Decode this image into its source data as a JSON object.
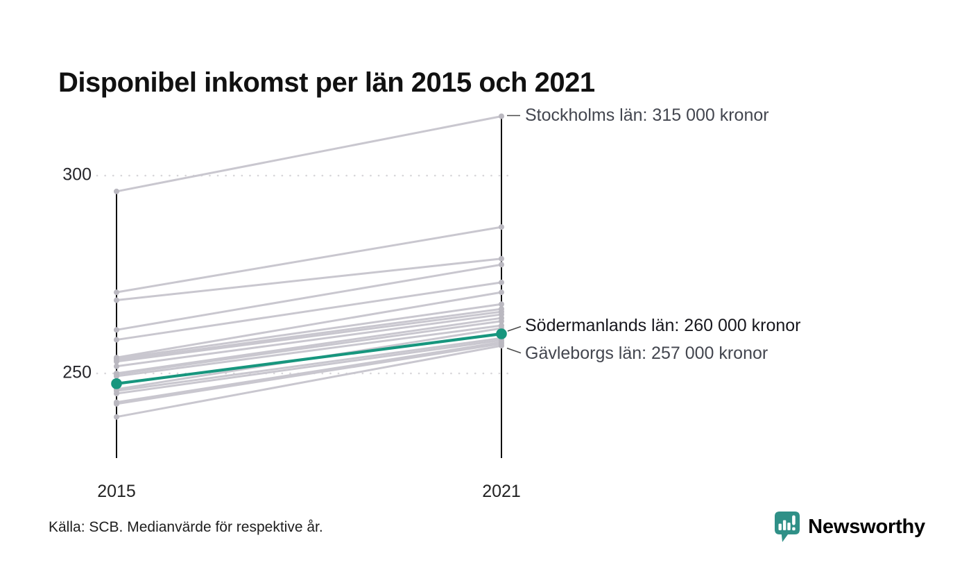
{
  "title": "Disponibel inkomst per län 2015 och 2021",
  "footer": {
    "source": "Källa: SCB. Medianvärde för respektive år."
  },
  "logo": {
    "text": "Newsworthy",
    "color": "#2f9087"
  },
  "chart_data": {
    "type": "line",
    "subtype": "slopegraph",
    "title": "Disponibel inkomst per län 2015 och 2021",
    "x_categories": [
      "2015",
      "2021"
    ],
    "y_ticks": [
      300,
      250
    ],
    "y_axis_scale": "thousands of kronor",
    "grid": "dotted horizontal lines at ticks",
    "colors": {
      "line_gray": "#c9c7cf",
      "dot_gray": "#bab8c0",
      "highlight": "#17967e",
      "axis": "#0d0d0d",
      "gridline": "#d7d6d9"
    },
    "series": [
      {
        "name": "Stockholms län",
        "values": [
          296,
          315
        ]
      },
      {
        "name": "",
        "values": [
          270.5,
          287
        ]
      },
      {
        "name": "",
        "values": [
          268.5,
          279
        ]
      },
      {
        "name": "",
        "values": [
          261,
          277.5
        ]
      },
      {
        "name": "",
        "values": [
          258.5,
          273
        ]
      },
      {
        "name": "",
        "values": [
          254,
          270.5
        ]
      },
      {
        "name": "",
        "values": [
          253.7,
          267.5
        ]
      },
      {
        "name": "",
        "values": [
          253.3,
          266.3
        ]
      },
      {
        "name": "",
        "values": [
          253,
          265.6
        ]
      },
      {
        "name": "",
        "values": [
          251.8,
          264.9
        ]
      },
      {
        "name": "",
        "values": [
          250,
          264
        ]
      },
      {
        "name": "",
        "values": [
          249.8,
          263.2
        ]
      },
      {
        "name": "",
        "values": [
          249.3,
          262.1
        ]
      },
      {
        "name": "",
        "values": [
          246,
          261.4
        ]
      },
      {
        "name": "",
        "values": [
          245.6,
          258.9
        ]
      },
      {
        "name": "",
        "values": [
          244.9,
          258.4
        ]
      },
      {
        "name": "",
        "values": [
          242.7,
          257.9
        ]
      },
      {
        "name": "",
        "values": [
          242.3,
          257.5
        ]
      },
      {
        "name": "Gävleborgs län",
        "values": [
          239,
          257
        ]
      },
      {
        "name": "Södermanlands län",
        "values": [
          247.4,
          260
        ],
        "highlight": true
      }
    ],
    "annotations": [
      {
        "label": "Stockholms län: 315 000 kronor",
        "value": 315,
        "color": "#43464f"
      },
      {
        "label": "Södermanlands län: 260 000 kronor",
        "value": 260,
        "color": "#17171d"
      },
      {
        "label": "Gävleborgs län: 257 000 kronor",
        "value": 257,
        "color": "#43464f"
      }
    ]
  }
}
